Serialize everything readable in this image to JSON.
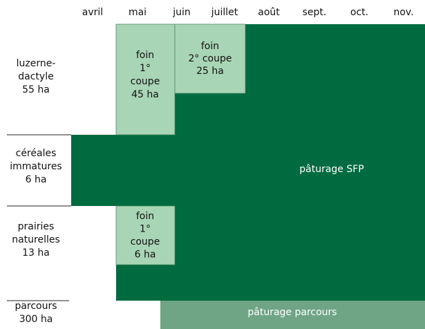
{
  "months": [
    "avril",
    "mai",
    "juin",
    "juillet",
    "août",
    "sept.",
    "oct.",
    "nov."
  ],
  "rows": [
    {
      "label": [
        "luzerne-",
        "dactyle",
        "55 ha"
      ]
    },
    {
      "label": [
        "céréales",
        "immatures",
        "6 ha"
      ]
    },
    {
      "label": [
        "prairies",
        "naturelles",
        "13 ha"
      ]
    },
    {
      "label": [
        "parcours",
        "300 ha"
      ]
    }
  ],
  "blocks": [
    {
      "label": [
        "foin",
        "1°",
        "coupe",
        "45 ha"
      ]
    },
    {
      "label": [
        "foin",
        "2° coupe",
        "25 ha"
      ]
    },
    {
      "label": [
        "foin",
        "1°",
        "coupe",
        "6 ha"
      ]
    },
    {
      "label": [
        "pâturage SFP"
      ]
    },
    {
      "label": [
        "pâturage parcours"
      ]
    }
  ]
}
